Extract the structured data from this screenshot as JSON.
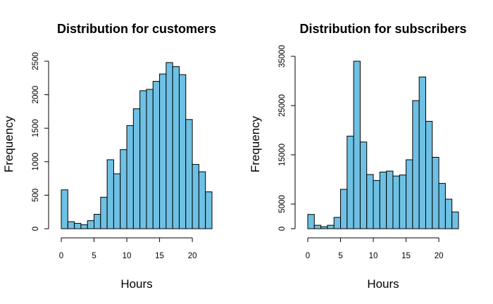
{
  "colors": {
    "bar_fill": "#6ec1e4",
    "bar_stroke": "#000000",
    "text": "#000000",
    "background": "#ffffff"
  },
  "chart_data": [
    {
      "type": "bar",
      "title": "Distribution for customers",
      "xlabel": "Hours",
      "ylabel": "Frequency",
      "bin_edges": [
        0,
        1,
        2,
        3,
        4,
        5,
        6,
        7,
        8,
        9,
        10,
        11,
        12,
        13,
        14,
        15,
        16,
        17,
        18,
        19,
        20,
        21,
        22,
        23
      ],
      "values": [
        580,
        105,
        80,
        60,
        120,
        215,
        470,
        1030,
        820,
        1180,
        1540,
        1790,
        2060,
        2080,
        2200,
        2310,
        2480,
        2420,
        2300,
        1630,
        960,
        850,
        550
      ],
      "xlim": [
        0,
        23
      ],
      "ylim": [
        0,
        2500
      ],
      "x_ticks": [
        0,
        5,
        10,
        15,
        20
      ],
      "x_tick_labels": [
        "0",
        "5",
        "10",
        "15",
        "20"
      ],
      "y_ticks": [
        0,
        500,
        1000,
        1500,
        2000,
        2500
      ],
      "y_tick_labels": [
        "0",
        "500",
        "1000",
        "1500",
        "2000",
        "2500"
      ]
    },
    {
      "type": "bar",
      "title": "Distribution for subscribers",
      "xlabel": "Hours",
      "ylabel": "Frequency",
      "bin_edges": [
        0,
        1,
        2,
        3,
        4,
        5,
        6,
        7,
        8,
        9,
        10,
        11,
        12,
        13,
        14,
        15,
        16,
        17,
        18,
        19,
        20,
        21,
        22,
        23
      ],
      "values": [
        2900,
        700,
        400,
        700,
        2300,
        8000,
        18800,
        34000,
        17600,
        11000,
        9800,
        11500,
        11700,
        10700,
        10900,
        14000,
        26000,
        30800,
        21800,
        14500,
        9200,
        6000,
        3400
      ],
      "xlim": [
        0,
        23
      ],
      "ylim": [
        0,
        35000
      ],
      "x_ticks": [
        0,
        5,
        10,
        15,
        20
      ],
      "x_tick_labels": [
        "0",
        "5",
        "10",
        "15",
        "20"
      ],
      "y_ticks": [
        0,
        5000,
        15000,
        25000,
        35000
      ],
      "y_tick_labels": [
        "0",
        "5000",
        "15000",
        "25000",
        "35000"
      ]
    }
  ]
}
